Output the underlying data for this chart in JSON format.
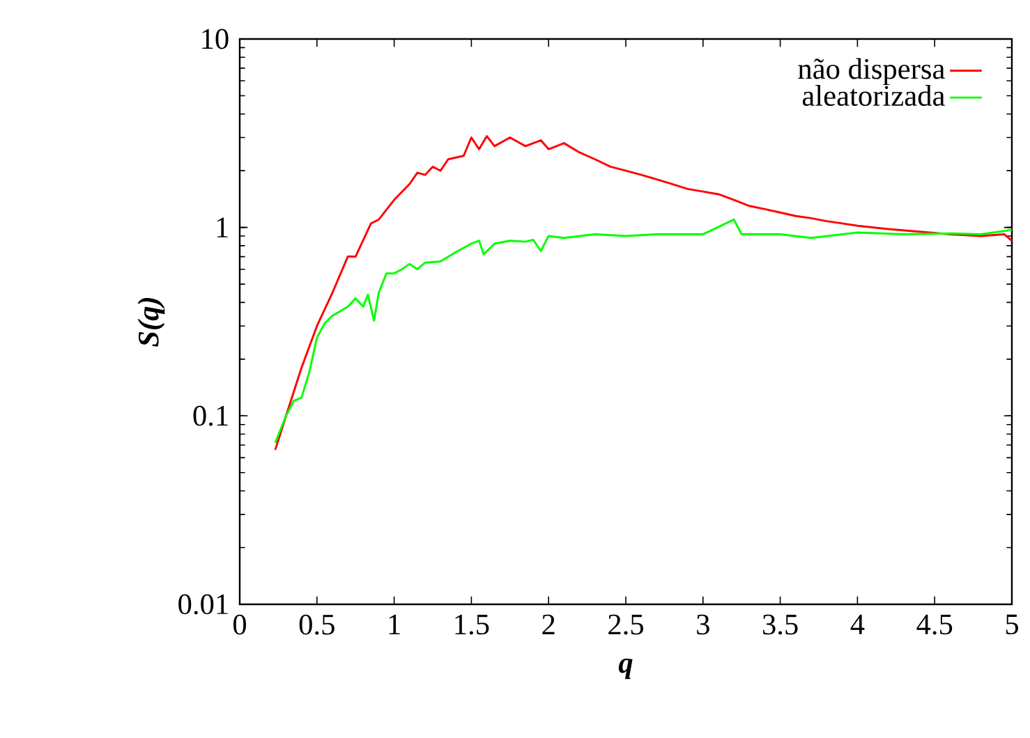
{
  "chart_data": {
    "type": "line",
    "xlabel": "q",
    "ylabel": "S(q)",
    "log": "y",
    "legend": "top right",
    "xlim": [
      0,
      5
    ],
    "ylim": [
      0.01,
      10
    ],
    "xticks": [
      0,
      0.5,
      1,
      1.5,
      2,
      2.5,
      3,
      3.5,
      4,
      4.5,
      5
    ],
    "yticks": [
      0.01,
      0.1,
      1,
      10
    ],
    "series": [
      {
        "name": "não dispersa",
        "color": "#ff0000",
        "x": [
          0.23,
          0.3,
          0.4,
          0.5,
          0.6,
          0.7,
          0.75,
          0.85,
          0.9,
          1.0,
          1.1,
          1.15,
          1.2,
          1.25,
          1.3,
          1.35,
          1.45,
          1.5,
          1.55,
          1.6,
          1.65,
          1.75,
          1.85,
          1.95,
          2.0,
          2.1,
          2.2,
          2.3,
          2.4,
          2.5,
          2.6,
          2.7,
          2.8,
          2.9,
          3.0,
          3.1,
          3.2,
          3.3,
          3.4,
          3.5,
          3.6,
          3.7,
          3.8,
          3.9,
          4.0,
          4.2,
          4.4,
          4.6,
          4.8,
          4.95,
          5.0
        ],
        "values": [
          0.066,
          0.1,
          0.18,
          0.3,
          0.45,
          0.7,
          0.7,
          1.05,
          1.1,
          1.4,
          1.7,
          1.95,
          1.9,
          2.1,
          2.0,
          2.3,
          2.4,
          3.0,
          2.6,
          3.05,
          2.7,
          3.0,
          2.7,
          2.9,
          2.6,
          2.8,
          2.5,
          2.3,
          2.1,
          2.0,
          1.9,
          1.8,
          1.7,
          1.6,
          1.55,
          1.5,
          1.4,
          1.3,
          1.25,
          1.2,
          1.15,
          1.12,
          1.08,
          1.05,
          1.02,
          0.98,
          0.95,
          0.92,
          0.9,
          0.92,
          0.85
        ]
      },
      {
        "name": "aleatorizada",
        "color": "#00ff00",
        "x": [
          0.23,
          0.3,
          0.35,
          0.4,
          0.45,
          0.5,
          0.55,
          0.6,
          0.7,
          0.75,
          0.8,
          0.83,
          0.87,
          0.9,
          0.95,
          1.0,
          1.05,
          1.1,
          1.15,
          1.2,
          1.3,
          1.4,
          1.5,
          1.55,
          1.58,
          1.65,
          1.75,
          1.85,
          1.9,
          1.95,
          2.0,
          2.1,
          2.3,
          2.5,
          2.7,
          3.0,
          3.2,
          3.25,
          3.5,
          3.7,
          4.0,
          4.3,
          4.6,
          4.8,
          5.0
        ],
        "values": [
          0.072,
          0.1,
          0.12,
          0.125,
          0.17,
          0.26,
          0.31,
          0.34,
          0.38,
          0.42,
          0.38,
          0.44,
          0.32,
          0.45,
          0.57,
          0.57,
          0.6,
          0.64,
          0.6,
          0.65,
          0.66,
          0.74,
          0.82,
          0.85,
          0.72,
          0.82,
          0.85,
          0.84,
          0.86,
          0.75,
          0.9,
          0.88,
          0.92,
          0.9,
          0.92,
          0.92,
          1.1,
          0.92,
          0.92,
          0.88,
          0.94,
          0.92,
          0.93,
          0.92,
          0.97
        ]
      }
    ]
  }
}
